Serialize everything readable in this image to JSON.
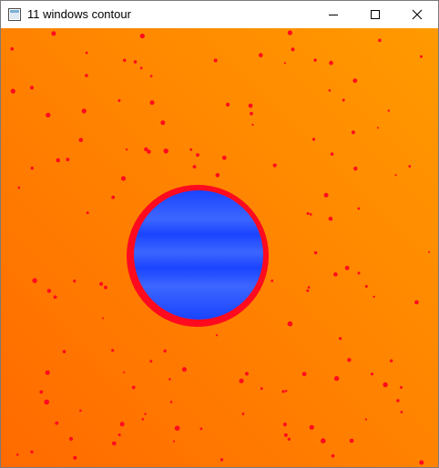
{
  "window": {
    "title": "11 windows contour",
    "icon": "app-window-icon",
    "controls": {
      "minimize_icon": "minimize-icon",
      "maximize_icon": "maximize-icon",
      "close_icon": "close-icon"
    }
  },
  "image": {
    "description_colors": {
      "background_dark": "#ff6a00",
      "background_light": "#ff9a00",
      "contour": "#ff0a1e",
      "fill": "#1a44ff",
      "fill_band": "#3d66ff"
    }
  }
}
